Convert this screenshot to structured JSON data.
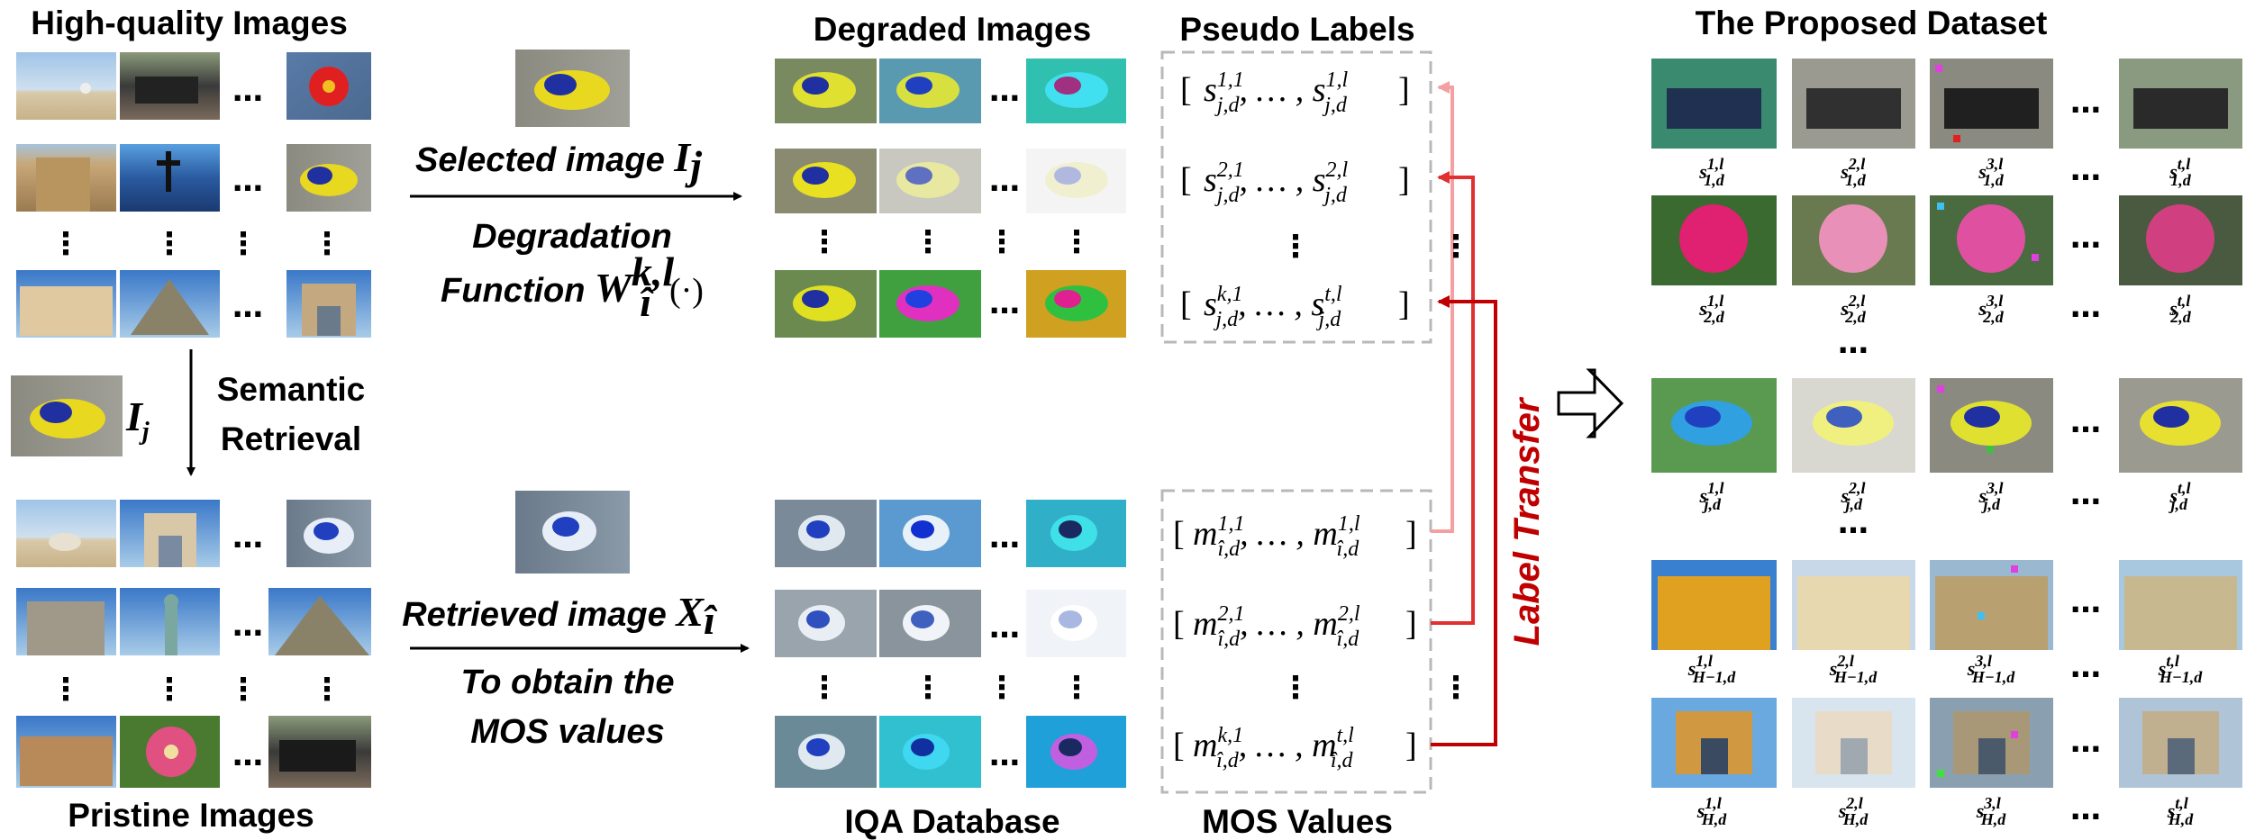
{
  "headers": {
    "high_quality": "High-quality Images",
    "pristine": "Pristine Images",
    "degraded": "Degraded Images",
    "iqa_database": "IQA Database",
    "pseudo_labels": "Pseudo Labels",
    "mos_values": "MOS Values",
    "proposed_dataset": "The Proposed Dataset"
  },
  "labels": {
    "selected_image": "Selected image",
    "selected_symbol": "I",
    "selected_sub": "j",
    "degradation_line1": "Degradation",
    "degradation_line2": "Function",
    "degradation_fn": "W",
    "degradation_sup": "k,l",
    "degradation_sub": "î",
    "degradation_arg": "(·)",
    "ij_symbol": "I",
    "ij_sub": "j",
    "semantic_line1": "Semantic",
    "semantic_line2": "Retrieval",
    "retrieved_image": "Retrieved image",
    "retrieved_symbol": "X",
    "retrieved_sub": "î",
    "to_obtain_line1": "To obtain the",
    "to_obtain_line2": "MOS values",
    "label_transfer": "Label Transfer",
    "ellipsis": "…",
    "vellipsis": "⋮"
  },
  "pseudo_labels": [
    {
      "first_sup": "1,1",
      "last_sup": "1,l",
      "sub": "j,d"
    },
    {
      "first_sup": "2,1",
      "last_sup": "2,l",
      "sub": "j,d"
    },
    {
      "first_sup": "k,1",
      "last_sup": "t,l",
      "sub": "j,d"
    }
  ],
  "mos_labels": [
    {
      "first_sup": "1,1",
      "last_sup": "1,l",
      "sub": "î,d"
    },
    {
      "first_sup": "2,1",
      "last_sup": "2,l",
      "sub": "î,d"
    },
    {
      "first_sup": "k,1",
      "last_sup": "t,l",
      "sub": "î,d"
    }
  ],
  "dataset_rows": [
    {
      "labels": [
        "s",
        "s",
        "s",
        "s"
      ],
      "sups": [
        "1,l",
        "2,l",
        "3,l",
        "t,l"
      ],
      "sub": "1,d"
    },
    {
      "labels": [
        "s",
        "s",
        "s",
        "s"
      ],
      "sups": [
        "1,l",
        "2,l",
        "3,l",
        "t,l"
      ],
      "sub": "2,d"
    },
    {
      "labels": [
        "s",
        "s",
        "s",
        "s"
      ],
      "sups": [
        "1,l",
        "2,l",
        "3,l",
        "t,l"
      ],
      "sub": "j,d"
    },
    {
      "labels": [
        "s",
        "s",
        "s",
        "s"
      ],
      "sups": [
        "1,l",
        "2,l",
        "3,l",
        "t,l"
      ],
      "sub": "H−1,d"
    },
    {
      "labels": [
        "s",
        "s",
        "s",
        "s"
      ],
      "sups": [
        "1,l",
        "2,l",
        "3,l",
        "t,l"
      ],
      "sub": "H,d"
    }
  ],
  "colors": {
    "arrow_light": "#f4a0a0",
    "arrow_mid": "#e03030",
    "arrow_dark": "#c00000",
    "dashed_box": "#b8b8b8"
  }
}
